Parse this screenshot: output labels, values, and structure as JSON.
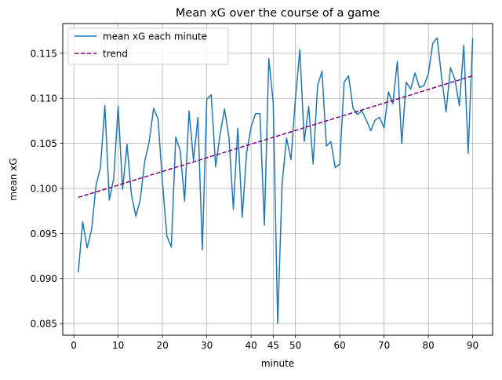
{
  "chart_data": {
    "type": "line",
    "title": "Mean xG over the course of a game",
    "xlabel": "minute",
    "ylabel": "mean xG",
    "xlim": [
      -2.5,
      94.5
    ],
    "ylim": [
      0.0837,
      0.1183
    ],
    "x_ticks": [
      0,
      10,
      20,
      30,
      40,
      45,
      50,
      60,
      70,
      80,
      90
    ],
    "y_ticks": [
      0.085,
      0.09,
      0.095,
      0.1,
      0.105,
      0.11,
      0.115
    ],
    "y_tick_labels": [
      "0.085",
      "0.090",
      "0.095",
      "0.100",
      "0.105",
      "0.110",
      "0.115"
    ],
    "grid": true,
    "legend_position": "upper-left",
    "colors": {
      "series": "#1f77b4",
      "trend": "#800080",
      "grid": "#b0b0b0"
    },
    "x": [
      1,
      2,
      3,
      4,
      5,
      6,
      7,
      8,
      9,
      10,
      11,
      12,
      13,
      14,
      15,
      16,
      17,
      18,
      19,
      20,
      21,
      22,
      23,
      24,
      25,
      26,
      27,
      28,
      29,
      30,
      31,
      32,
      33,
      34,
      35,
      36,
      37,
      38,
      39,
      40,
      41,
      42,
      43,
      44,
      45,
      46,
      47,
      48,
      49,
      50,
      51,
      52,
      53,
      54,
      55,
      56,
      57,
      58,
      59,
      60,
      61,
      62,
      63,
      64,
      65,
      66,
      67,
      68,
      69,
      70,
      71,
      72,
      73,
      74,
      75,
      76,
      77,
      78,
      79,
      80,
      81,
      82,
      83,
      84,
      85,
      86,
      87,
      88,
      89,
      90
    ],
    "series": [
      {
        "name": "mean xG each minute",
        "style": "solid",
        "values": [
          0.0907,
          0.0963,
          0.0934,
          0.0954,
          0.1003,
          0.1023,
          0.1092,
          0.0987,
          0.1011,
          0.1091,
          0.0999,
          0.1049,
          0.0993,
          0.0969,
          0.0988,
          0.103,
          0.1052,
          0.1089,
          0.1077,
          0.1007,
          0.0947,
          0.0935,
          0.1057,
          0.1042,
          0.0986,
          0.1086,
          0.1031,
          0.1079,
          0.0932,
          0.1099,
          0.1104,
          0.1024,
          0.106,
          0.1088,
          0.1057,
          0.0977,
          0.1067,
          0.0968,
          0.104,
          0.1068,
          0.1083,
          0.1083,
          0.0959,
          0.1144,
          0.1095,
          0.085,
          0.1005,
          0.1056,
          0.1032,
          0.1099,
          0.1154,
          0.1052,
          0.1091,
          0.1027,
          0.1114,
          0.113,
          0.1047,
          0.1052,
          0.1023,
          0.1027,
          0.1118,
          0.1125,
          0.1089,
          0.1082,
          0.1086,
          0.1076,
          0.1064,
          0.1076,
          0.1079,
          0.1067,
          0.1107,
          0.1094,
          0.1141,
          0.105,
          0.1118,
          0.111,
          0.1128,
          0.1112,
          0.1114,
          0.1127,
          0.1161,
          0.1167,
          0.1123,
          0.1085,
          0.1134,
          0.1121,
          0.1092,
          0.1159,
          0.1039,
          0.1167
        ]
      },
      {
        "name": "trend",
        "style": "dashed",
        "x": [
          1,
          90
        ],
        "values": [
          0.099,
          0.1125
        ]
      }
    ]
  }
}
